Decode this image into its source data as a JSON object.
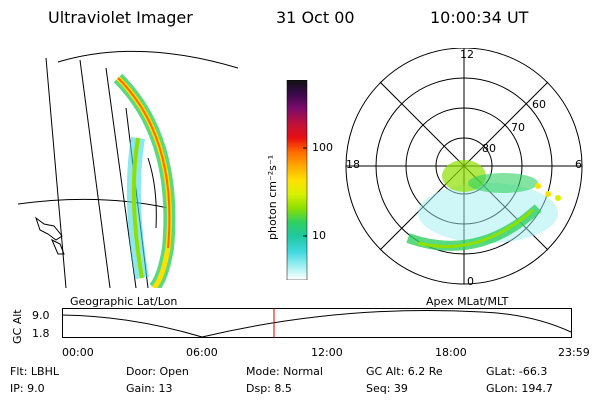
{
  "header": {
    "instrument": "Ultraviolet Imager",
    "date": "31 Oct 00",
    "time": "10:00:34 UT"
  },
  "left_panel": {
    "label": "Geographic Lat/Lon"
  },
  "right_panel": {
    "label": "Apex MLat/MLT",
    "mlt_labels": {
      "top": "12",
      "left": "18",
      "right": "6",
      "bottom": "0"
    },
    "lat_labels": [
      "60",
      "70",
      "80"
    ]
  },
  "colorbar": {
    "unit_label": "photon cm⁻²s⁻¹",
    "ticks": [
      "100",
      "10"
    ],
    "colors": [
      "#101010",
      "#3a0a4a",
      "#7a0a6a",
      "#c0103a",
      "#e81010",
      "#ff6a00",
      "#ffa800",
      "#ffe000",
      "#d8f000",
      "#8fe000",
      "#30d060",
      "#20c8a0",
      "#40d8e0",
      "#a0f0f0",
      "#ffffff"
    ]
  },
  "timeline": {
    "ylabel": "GC Alt",
    "y_ticks": [
      "9.0",
      "1.8"
    ],
    "x_ticks": [
      "00:00",
      "06:00",
      "12:00",
      "18:00",
      "23:59"
    ],
    "marker_color": "#d00000"
  },
  "info": {
    "flt": "Flt: LBHL",
    "ip": "IP: 9.0",
    "door": "Door: Open",
    "gain": "Gain: 13",
    "mode": "Mode: Normal",
    "dsp": "Dsp:    8.5",
    "gcalt": "GC Alt: 6.2 Re",
    "seq": "Seq: 39",
    "glat": "GLat: -66.3",
    "glon": "GLon: 194.7"
  }
}
